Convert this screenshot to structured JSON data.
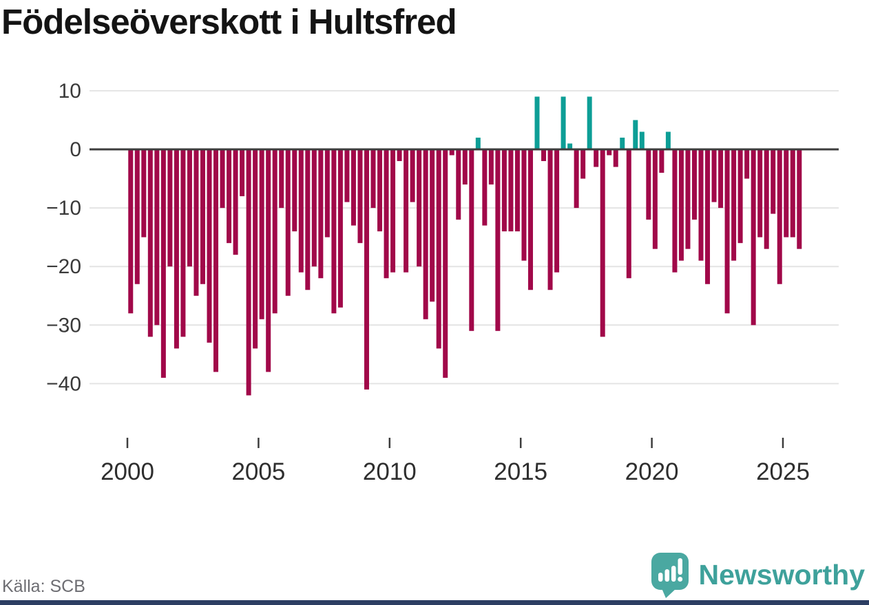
{
  "title": "Födelseöverskott i Hultsfred",
  "footer": {
    "source_label": "Källa: SCB",
    "brand_name": "Newsworthy"
  },
  "colors": {
    "background": "#ffffff",
    "title_text": "#141414",
    "bar_negative": "#a10849",
    "bar_positive": "#0d9e96",
    "zero_axis": "#3d3d3d",
    "gridline": "#e4e4e4",
    "tick_mark": "#3d3d3d",
    "ytick_text": "#3a3a3a",
    "xtick_text": "#2e2e2e",
    "source_text": "#6d6d72",
    "brand_teal": "#3ea19b",
    "logo_bubble": "#4aa8a1",
    "logo_glyphs": "#ffffff",
    "bottom_strip": "#2c3e63"
  },
  "chart_data": {
    "type": "bar",
    "title": "Födelseöverskott i Hultsfred",
    "xlabel": "",
    "ylabel": "",
    "frequency": "quarterly",
    "first_period": "2000Q1",
    "last_period": "2025Q3",
    "ylim": [
      -45,
      12
    ],
    "yticks": [
      10,
      0,
      -10,
      -20,
      -30,
      -40
    ],
    "ytick_labels": [
      "10",
      "0",
      "−10",
      "−20",
      "−30",
      "−40"
    ],
    "xtick_labels": [
      "2000",
      "2005",
      "2010",
      "2015",
      "2020",
      "2025"
    ],
    "grid": true,
    "legend": false,
    "bar_colors": {
      "positive": "#0d9e96",
      "negative": "#a10849"
    },
    "series": [
      {
        "year": 2000,
        "quarterly_values": [
          -28,
          -23,
          -15,
          -32
        ]
      },
      {
        "year": 2001,
        "quarterly_values": [
          -30,
          -39,
          -20,
          -34
        ]
      },
      {
        "year": 2002,
        "quarterly_values": [
          -32,
          -20,
          -25,
          -23
        ]
      },
      {
        "year": 2003,
        "quarterly_values": [
          -33,
          -38,
          -10,
          -16
        ]
      },
      {
        "year": 2004,
        "quarterly_values": [
          -18,
          -8,
          -42,
          -34
        ]
      },
      {
        "year": 2005,
        "quarterly_values": [
          -29,
          -38,
          -28,
          -10
        ]
      },
      {
        "year": 2006,
        "quarterly_values": [
          -25,
          -14,
          -21,
          -24
        ]
      },
      {
        "year": 2007,
        "quarterly_values": [
          -20,
          -22,
          -15,
          -28
        ]
      },
      {
        "year": 2008,
        "quarterly_values": [
          -27,
          -9,
          -13,
          -16
        ]
      },
      {
        "year": 2009,
        "quarterly_values": [
          -41,
          -10,
          -14,
          -22
        ]
      },
      {
        "year": 2010,
        "quarterly_values": [
          -21,
          -2,
          -21,
          -9
        ]
      },
      {
        "year": 2011,
        "quarterly_values": [
          -20,
          -29,
          -26,
          -34
        ]
      },
      {
        "year": 2012,
        "quarterly_values": [
          -39,
          -1,
          -12,
          -6
        ]
      },
      {
        "year": 2013,
        "quarterly_values": [
          -31,
          2,
          -13,
          -6
        ]
      },
      {
        "year": 2014,
        "quarterly_values": [
          -31,
          -14,
          -14,
          -14
        ]
      },
      {
        "year": 2015,
        "quarterly_values": [
          -19,
          -24,
          9,
          -2
        ]
      },
      {
        "year": 2016,
        "quarterly_values": [
          -24,
          -21,
          9,
          1
        ]
      },
      {
        "year": 2017,
        "quarterly_values": [
          -10,
          -5,
          9,
          -3
        ]
      },
      {
        "year": 2018,
        "quarterly_values": [
          -32,
          -1,
          -3,
          2
        ]
      },
      {
        "year": 2019,
        "quarterly_values": [
          -22,
          5,
          3,
          -12
        ]
      },
      {
        "year": 2020,
        "quarterly_values": [
          -17,
          -4,
          3,
          -21
        ]
      },
      {
        "year": 2021,
        "quarterly_values": [
          -19,
          -17,
          -12,
          -19
        ]
      },
      {
        "year": 2022,
        "quarterly_values": [
          -23,
          -9,
          -10,
          -28
        ]
      },
      {
        "year": 2023,
        "quarterly_values": [
          -19,
          -16,
          -5,
          -30
        ]
      },
      {
        "year": 2024,
        "quarterly_values": [
          -15,
          -17,
          -11,
          -23
        ]
      },
      {
        "year": 2025,
        "quarterly_values": [
          -15,
          -15,
          -17
        ]
      }
    ]
  }
}
